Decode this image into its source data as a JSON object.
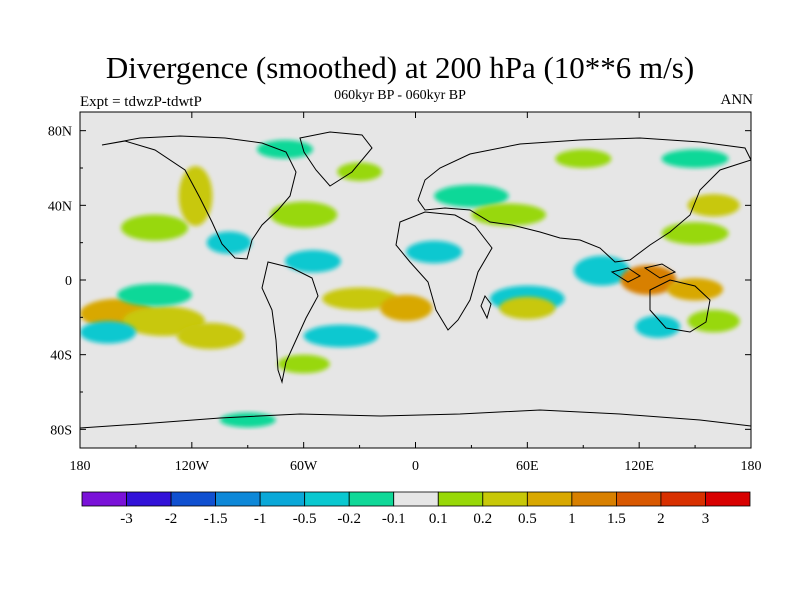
{
  "chart_data": {
    "type": "heatmap",
    "title": "Divergence (smoothed) at 200 hPa (10**6 m/s)",
    "subtitle": "060kyr BP - 060kyr BP",
    "left_label": "Expt = tdwzP-tdwtP",
    "right_label": "ANN",
    "x_axis": {
      "range": [
        -180,
        180
      ],
      "ticks": [
        {
          "value": -180,
          "label": "180"
        },
        {
          "value": -120,
          "label": "120W"
        },
        {
          "value": -60,
          "label": "60W"
        },
        {
          "value": 0,
          "label": "0"
        },
        {
          "value": 60,
          "label": "60E"
        },
        {
          "value": 120,
          "label": "120E"
        },
        {
          "value": 180,
          "label": "180"
        }
      ]
    },
    "y_axis": {
      "range": [
        -90,
        90
      ],
      "ticks": [
        {
          "value": 80,
          "label": "80N"
        },
        {
          "value": 40,
          "label": "40N"
        },
        {
          "value": 0,
          "label": "0"
        },
        {
          "value": -40,
          "label": "40S"
        },
        {
          "value": -80,
          "label": "80S"
        }
      ]
    },
    "colorbar": {
      "levels": [
        "-3",
        "-2",
        "-1.5",
        "-1",
        "-0.5",
        "-0.2",
        "-0.1",
        "0.1",
        "0.2",
        "0.5",
        "1",
        "1.5",
        "2",
        "3"
      ],
      "colors": [
        "#7a12d8",
        "#3212d8",
        "#1050d0",
        "#0e88d8",
        "#0aa8d8",
        "#0ac8d0",
        "#10d898",
        "#e6e6e6",
        "#98d808",
        "#c8c808",
        "#d8a800",
        "#d88000",
        "#d85800",
        "#d83000",
        "#d80000"
      ]
    },
    "regions": [
      {
        "lon": -160,
        "lat": -18,
        "rx": 20,
        "ry": 8,
        "value": 1.0
      },
      {
        "lon": -135,
        "lat": -22,
        "rx": 22,
        "ry": 8,
        "value": 0.5
      },
      {
        "lon": -110,
        "lat": -30,
        "rx": 18,
        "ry": 7,
        "value": 0.5
      },
      {
        "lon": -165,
        "lat": -28,
        "rx": 15,
        "ry": 6,
        "value": -0.2
      },
      {
        "lon": -140,
        "lat": -8,
        "rx": 20,
        "ry": 6,
        "value": -0.1
      },
      {
        "lon": -140,
        "lat": 28,
        "rx": 18,
        "ry": 7,
        "value": 0.2
      },
      {
        "lon": -118,
        "lat": 45,
        "rx": 9,
        "ry": 16,
        "value": 0.5
      },
      {
        "lon": -100,
        "lat": 20,
        "rx": 12,
        "ry": 6,
        "value": -0.2
      },
      {
        "lon": -60,
        "lat": 35,
        "rx": 18,
        "ry": 7,
        "value": 0.2
      },
      {
        "lon": -55,
        "lat": 10,
        "rx": 15,
        "ry": 6,
        "value": -0.2
      },
      {
        "lon": -30,
        "lat": -10,
        "rx": 20,
        "ry": 6,
        "value": 0.5
      },
      {
        "lon": -5,
        "lat": -15,
        "rx": 14,
        "ry": 7,
        "value": 1.0
      },
      {
        "lon": -40,
        "lat": -30,
        "rx": 20,
        "ry": 6,
        "value": -0.2
      },
      {
        "lon": -60,
        "lat": -45,
        "rx": 14,
        "ry": 5,
        "value": 0.2
      },
      {
        "lon": -70,
        "lat": 70,
        "rx": 15,
        "ry": 5,
        "value": -0.1
      },
      {
        "lon": -30,
        "lat": 58,
        "rx": 12,
        "ry": 5,
        "value": 0.2
      },
      {
        "lon": 30,
        "lat": 45,
        "rx": 20,
        "ry": 6,
        "value": -0.1
      },
      {
        "lon": 50,
        "lat": 35,
        "rx": 20,
        "ry": 6,
        "value": 0.2
      },
      {
        "lon": 10,
        "lat": 15,
        "rx": 15,
        "ry": 6,
        "value": -0.2
      },
      {
        "lon": 60,
        "lat": -10,
        "rx": 20,
        "ry": 7,
        "value": -0.2
      },
      {
        "lon": 60,
        "lat": -15,
        "rx": 15,
        "ry": 6,
        "value": 0.5
      },
      {
        "lon": 100,
        "lat": 5,
        "rx": 15,
        "ry": 8,
        "value": -0.2
      },
      {
        "lon": 125,
        "lat": 0,
        "rx": 15,
        "ry": 8,
        "value": 1.5
      },
      {
        "lon": 150,
        "lat": -5,
        "rx": 15,
        "ry": 6,
        "value": 1.0
      },
      {
        "lon": 150,
        "lat": 25,
        "rx": 18,
        "ry": 6,
        "value": 0.2
      },
      {
        "lon": 160,
        "lat": 40,
        "rx": 14,
        "ry": 6,
        "value": 0.5
      },
      {
        "lon": 130,
        "lat": -25,
        "rx": 12,
        "ry": 6,
        "value": -0.2
      },
      {
        "lon": 160,
        "lat": -22,
        "rx": 14,
        "ry": 6,
        "value": 0.2
      },
      {
        "lon": 150,
        "lat": 65,
        "rx": 18,
        "ry": 5,
        "value": -0.1
      },
      {
        "lon": 90,
        "lat": 65,
        "rx": 15,
        "ry": 5,
        "value": 0.2
      },
      {
        "lon": -90,
        "lat": -75,
        "rx": 15,
        "ry": 4,
        "value": -0.1
      }
    ]
  }
}
